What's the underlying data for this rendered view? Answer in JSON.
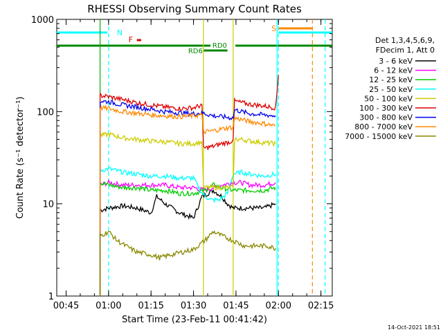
{
  "chart_data": {
    "type": "line",
    "title": "RHESSI Observing Summary Count Rates",
    "xlabel": "Start Time (23-Feb-11 00:41:42)",
    "ylabel": "Count Rate (s⁻¹ detector⁻¹)",
    "yscale": "log",
    "ylim": [
      1,
      1000
    ],
    "xlim_minutes": [
      41.7,
      139.0
    ],
    "y_ticks": [
      {
        "value": 1,
        "label": "1"
      },
      {
        "value": 10,
        "label": "10"
      },
      {
        "value": 100,
        "label": "100"
      },
      {
        "value": 1000,
        "label": "1000"
      }
    ],
    "x_ticks": [
      {
        "value": 45,
        "label": "00:45"
      },
      {
        "value": 60,
        "label": "01:00"
      },
      {
        "value": 75,
        "label": "01:15"
      },
      {
        "value": 90,
        "label": "01:30"
      },
      {
        "value": 105,
        "label": "01:45"
      },
      {
        "value": 120,
        "label": "02:00"
      },
      {
        "value": 135,
        "label": "02:15"
      }
    ],
    "legend": {
      "placement": "right",
      "header": [
        "Det 1,3,4,5,6,9,",
        "FDecim 1, Att 0"
      ],
      "entries": [
        {
          "label": "3 - 6 keV",
          "color": "#000000"
        },
        {
          "label": "6 - 12 keV",
          "color": "#ff00ff"
        },
        {
          "label": "12 - 25 keV",
          "color": "#00cc00"
        },
        {
          "label": "25 - 50 keV",
          "color": "#00ffff"
        },
        {
          "label": "50 - 100 keV",
          "color": "#cccc00"
        },
        {
          "label": "100 - 300 keV",
          "color": "#dd0000"
        },
        {
          "label": "300 - 800 keV",
          "color": "#0000ee"
        },
        {
          "label": "800 - 7000 keV",
          "color": "#ff8800"
        },
        {
          "label": "7000 - 15000 keV",
          "color": "#888800"
        }
      ]
    },
    "series": [
      {
        "name": "3 - 6 keV",
        "color": "#000000",
        "points": [
          [
            57,
            8.5
          ],
          [
            60,
            9
          ],
          [
            65,
            9.5
          ],
          [
            70,
            9
          ],
          [
            75,
            8
          ],
          [
            77,
            12
          ],
          [
            80,
            10
          ],
          [
            85,
            8
          ],
          [
            90,
            7
          ],
          [
            93,
            12
          ],
          [
            97,
            14
          ],
          [
            100,
            12
          ],
          [
            102,
            10
          ],
          [
            104,
            9
          ],
          [
            107,
            9
          ],
          [
            110,
            9
          ],
          [
            115,
            9
          ],
          [
            119,
            10
          ]
        ]
      },
      {
        "name": "6 - 12 keV",
        "color": "#ff00ff",
        "points": [
          [
            57,
            16
          ],
          [
            60,
            17
          ],
          [
            65,
            16
          ],
          [
            70,
            16
          ],
          [
            75,
            16
          ],
          [
            80,
            16
          ],
          [
            85,
            15
          ],
          [
            90,
            15
          ],
          [
            94,
            14
          ],
          [
            97,
            15
          ],
          [
            100,
            16
          ],
          [
            104,
            17
          ],
          [
            107,
            17
          ],
          [
            110,
            16
          ],
          [
            115,
            16
          ],
          [
            119,
            17
          ]
        ]
      },
      {
        "name": "12 - 25 keV",
        "color": "#00cc00",
        "points": [
          [
            57,
            17
          ],
          [
            60,
            16
          ],
          [
            65,
            15
          ],
          [
            70,
            15
          ],
          [
            75,
            14
          ],
          [
            80,
            14
          ],
          [
            85,
            13
          ],
          [
            90,
            13
          ],
          [
            94,
            14
          ],
          [
            97,
            16
          ],
          [
            100,
            15
          ],
          [
            104,
            14
          ],
          [
            107,
            14
          ],
          [
            110,
            14
          ],
          [
            115,
            14
          ],
          [
            119,
            15
          ]
        ]
      },
      {
        "name": "25 - 50 keV",
        "color": "#00ffff",
        "points": [
          [
            57,
            23
          ],
          [
            60,
            24
          ],
          [
            65,
            22
          ],
          [
            70,
            21
          ],
          [
            75,
            20
          ],
          [
            80,
            20
          ],
          [
            85,
            19
          ],
          [
            90,
            19
          ],
          [
            93,
            13
          ],
          [
            96,
            11
          ],
          [
            99,
            11
          ],
          [
            102,
            13
          ],
          [
            104,
            21
          ],
          [
            107,
            22
          ],
          [
            110,
            21
          ],
          [
            115,
            20
          ],
          [
            119,
            21
          ]
        ]
      },
      {
        "name": "50 - 100 keV",
        "color": "#cccc00",
        "points": [
          [
            57,
            55
          ],
          [
            60,
            57
          ],
          [
            65,
            52
          ],
          [
            70,
            50
          ],
          [
            75,
            48
          ],
          [
            80,
            47
          ],
          [
            85,
            45
          ],
          [
            90,
            45
          ],
          [
            93,
            47
          ],
          [
            93.5,
            15
          ],
          [
            104,
            15
          ],
          [
            104.5,
            50
          ],
          [
            107,
            50
          ],
          [
            110,
            48
          ],
          [
            115,
            46
          ],
          [
            119,
            45
          ]
        ]
      },
      {
        "name": "100 - 300 keV",
        "color": "#dd0000",
        "points": [
          [
            57,
            150
          ],
          [
            60,
            145
          ],
          [
            65,
            135
          ],
          [
            70,
            125
          ],
          [
            75,
            118
          ],
          [
            80,
            112
          ],
          [
            85,
            108
          ],
          [
            90,
            110
          ],
          [
            93,
            118
          ],
          [
            93.5,
            40
          ],
          [
            97,
            42
          ],
          [
            100,
            45
          ],
          [
            103,
            47
          ],
          [
            104,
            50
          ],
          [
            104.5,
            130
          ],
          [
            107,
            125
          ],
          [
            110,
            120
          ],
          [
            115,
            115
          ],
          [
            119,
            110
          ],
          [
            120,
            250
          ]
        ]
      },
      {
        "name": "300 - 800 keV",
        "color": "#0000ee",
        "points": [
          [
            57,
            130
          ],
          [
            60,
            128
          ],
          [
            65,
            118
          ],
          [
            70,
            112
          ],
          [
            75,
            106
          ],
          [
            80,
            100
          ],
          [
            85,
            97
          ],
          [
            90,
            95
          ],
          [
            93,
            97
          ],
          [
            97,
            90
          ],
          [
            100,
            88
          ],
          [
            103,
            86
          ],
          [
            104,
            85
          ],
          [
            104.5,
            105
          ],
          [
            107,
            100
          ],
          [
            110,
            95
          ],
          [
            115,
            92
          ],
          [
            119,
            90
          ]
        ]
      },
      {
        "name": "800 - 7000 keV",
        "color": "#ff8800",
        "points": [
          [
            57,
            110
          ],
          [
            60,
            108
          ],
          [
            65,
            100
          ],
          [
            70,
            96
          ],
          [
            75,
            92
          ],
          [
            80,
            90
          ],
          [
            85,
            88
          ],
          [
            90,
            90
          ],
          [
            93,
            92
          ],
          [
            93.5,
            60
          ],
          [
            97,
            62
          ],
          [
            100,
            65
          ],
          [
            104,
            68
          ],
          [
            104.5,
            85
          ],
          [
            107,
            82
          ],
          [
            110,
            78
          ],
          [
            115,
            74
          ],
          [
            119,
            70
          ]
        ]
      },
      {
        "name": "7000 - 15000 keV",
        "color": "#888800",
        "points": [
          [
            57,
            4.5
          ],
          [
            60,
            5
          ],
          [
            63,
            4
          ],
          [
            66,
            3.5
          ],
          [
            70,
            3
          ],
          [
            75,
            2.8
          ],
          [
            78,
            2.6
          ],
          [
            82,
            2.8
          ],
          [
            86,
            3
          ],
          [
            90,
            3.2
          ],
          [
            94,
            4
          ],
          [
            97,
            5
          ],
          [
            100,
            4.5
          ],
          [
            104,
            4
          ],
          [
            108,
            3.5
          ],
          [
            112,
            3.5
          ],
          [
            116,
            3.5
          ],
          [
            119,
            3.3
          ]
        ]
      }
    ],
    "annotations": {
      "night_marker": {
        "label": "N",
        "color": "#00ffff",
        "start": 41.7,
        "end": 60
      },
      "flare_marker": {
        "label": "F",
        "color": "#dd0000",
        "start": 70,
        "end": 71.5,
        "value": 740
      },
      "saa_marker": {
        "label": "S",
        "color": "#ff8800",
        "start": 120,
        "end": 132,
        "value": 790
      },
      "second_night": {
        "color": "#00ffff",
        "start": 120,
        "end": 136.5
      },
      "decimation_line": {
        "color": "#008800",
        "value": 500
      },
      "rd0": {
        "label": "RD0",
        "color": "#008800",
        "start": 95,
        "end": 103.5
      },
      "rd6": {
        "label": "RD6",
        "color": "#008800",
        "start": 93,
        "end": 102
      },
      "vertical_lines": [
        {
          "x": 57,
          "color": "#00aa00",
          "style": "solid"
        },
        {
          "x": 60,
          "color": "#00ffff",
          "style": "dashed"
        },
        {
          "x": 93.5,
          "color": "#cccc00",
          "style": "solid"
        },
        {
          "x": 104,
          "color": "#cccc00",
          "style": "solid"
        },
        {
          "x": 119.5,
          "color": "#00ffff",
          "style": "solid"
        },
        {
          "x": 120,
          "color": "#00ffff",
          "style": "dashed"
        },
        {
          "x": 132,
          "color": "#ff8800",
          "style": "dashed"
        },
        {
          "x": 136.5,
          "color": "#00ffff",
          "style": "dashed"
        }
      ]
    }
  },
  "footer": {
    "timestamp": "14-Oct-2021 18:51"
  }
}
